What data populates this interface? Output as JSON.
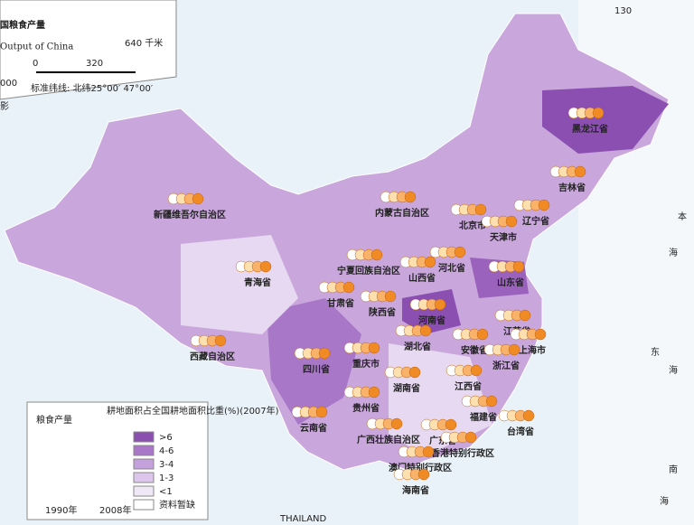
{
  "header": {
    "title": "国粮食产量",
    "subtitle": "Output of China",
    "scale_end": "640 千米",
    "scale_start": "0",
    "scale_mid": "320",
    "ratio": "000",
    "parallels": "标准纬线: 北纬25°00′ 47°00′",
    "left_mark": "影"
  },
  "grid_label": "130",
  "provinces": [
    {
      "name": "黑龙江省"
    },
    {
      "name": "吉林省"
    },
    {
      "name": "辽宁省"
    },
    {
      "name": "内蒙古自治区"
    },
    {
      "name": "北京市"
    },
    {
      "name": "天津市"
    },
    {
      "name": "河北省"
    },
    {
      "name": "山西省"
    },
    {
      "name": "宁夏回族自治区"
    },
    {
      "name": "新疆维吾尔自治区"
    },
    {
      "name": "青海省"
    },
    {
      "name": "甘肃省"
    },
    {
      "name": "陕西省"
    },
    {
      "name": "河南省"
    },
    {
      "name": "山东省"
    },
    {
      "name": "江苏省"
    },
    {
      "name": "上海市"
    },
    {
      "name": "安徽省"
    },
    {
      "name": "湖北省"
    },
    {
      "name": "重庆市"
    },
    {
      "name": "四川省"
    },
    {
      "name": "西藏自治区"
    },
    {
      "name": "贵州省"
    },
    {
      "name": "湖南省"
    },
    {
      "name": "江西省"
    },
    {
      "name": "浙江省"
    },
    {
      "name": "福建省"
    },
    {
      "name": "台湾省"
    },
    {
      "name": "云南省"
    },
    {
      "name": "广西壮族自治区"
    },
    {
      "name": "广东省"
    },
    {
      "name": "香港特别行政区"
    },
    {
      "name": "澳门特别行政区"
    },
    {
      "name": "海南省"
    }
  ],
  "seas": [
    "本",
    "海",
    "东",
    "海",
    "南",
    "海"
  ],
  "neighbor": "THAILAND",
  "legend": {
    "grain_title": "粮食产量",
    "area_title": "耕地面积占全国耕地面积比重(%)(2007年)",
    "classes": [
      {
        "label": ">6",
        "color": "#8a4fb0"
      },
      {
        "label": "4-6",
        "color": "#a877c8"
      },
      {
        "label": "3-4",
        "color": "#c4a0dc"
      },
      {
        "label": "1-3",
        "color": "#dcc6ec"
      },
      {
        "label": "<1",
        "color": "#f1e8f7"
      },
      {
        "label": "资料暂缺",
        "color": "#ffffff"
      }
    ],
    "years": [
      "1990年",
      "2008年"
    ]
  }
}
